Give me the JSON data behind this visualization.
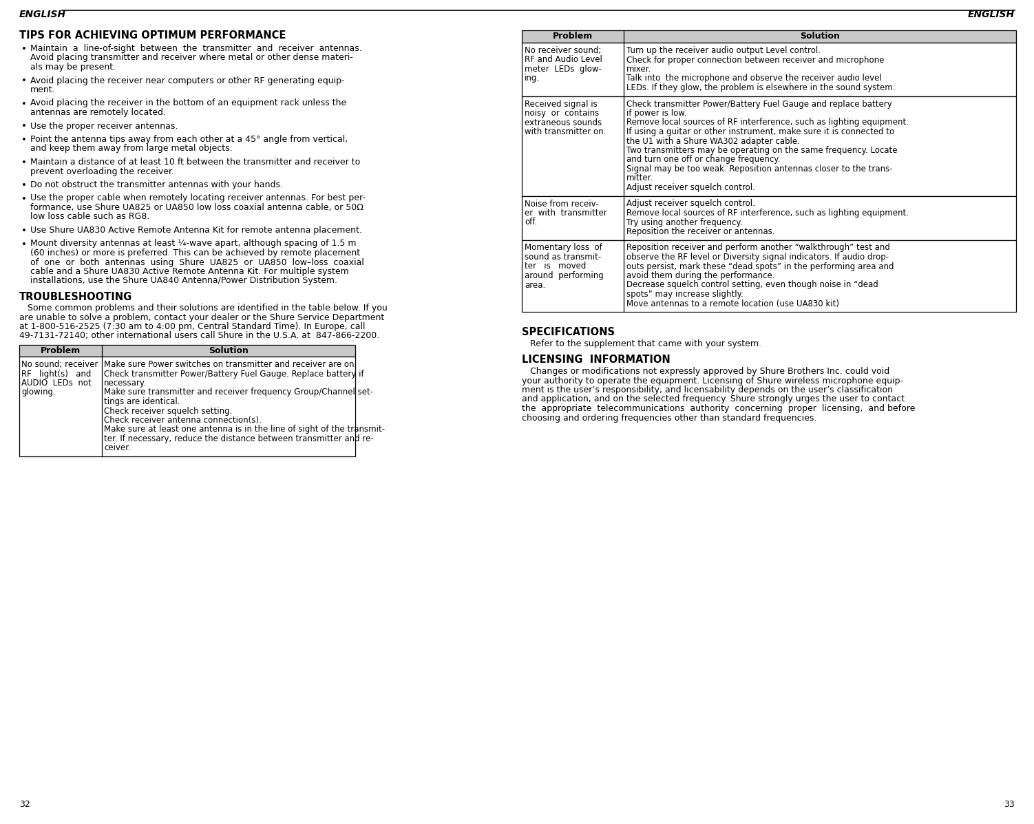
{
  "bg_color": "#ffffff",
  "text_color": "#000000",
  "page_numbers": [
    "32",
    "33"
  ],
  "left_heading": "TIPS FOR ACHIEVING OPTIMUM PERFORMANCE",
  "left_bullets": [
    "Maintain  a  line-of-sight  between  the  transmitter  and  receiver  antennas.\nAvoid placing transmitter and receiver where metal or other dense materi-\nals may be present.",
    "Avoid placing the receiver near computers or other RF generating equip-\nment.",
    "Avoid placing the receiver in the bottom of an equipment rack unless the\nantennas are remotely located.",
    "Use the proper receiver antennas.",
    "Point the antenna tips away from each other at a 45° angle from vertical,\nand keep them away from large metal objects.",
    "Maintain a distance of at least 10 ft between the transmitter and receiver to\nprevent overloading the receiver.",
    "Do not obstruct the transmitter antennas with your hands.",
    "Use the proper cable when remotely locating receiver antennas. For best per-\nformance, use Shure UA825 or UA850 low loss coaxial antenna cable, or 50Ω\nlow loss cable such as RG8.",
    "Use Shure UA830 Active Remote Antenna Kit for remote antenna placement.",
    "Mount diversity antennas at least ¼-wave apart, although spacing of 1.5 m\n(60 inches) or more is preferred. This can be achieved by remote placement\nof  one  or  both  antennas  using  Shure  UA825  or  UA850  low–loss  coaxial\ncable and a Shure UA830 Active Remote Antenna Kit. For multiple system\ninstallations, use the Shure UA840 Antenna/Power Distribution System."
  ],
  "troubleshooting_heading": "TROUBLESHOOTING",
  "troubleshooting_intro": "   Some common problems and their solutions are identified in the table below. If you\nare unable to solve a problem, contact your dealer or the Shure Service Department\nat 1-800-516-2525 (7:30 am to 4:00 pm, Central Standard Time). In Europe, call\n49-7131-72140; other international users call Shure in the U.S.A. at  847-866-2200.",
  "left_table_header": [
    "Problem",
    "Solution"
  ],
  "left_table_rows": [
    {
      "problem": "No sound; receiver\nRF   light(s)   and\nAUDIO  LEDs  not\nglowing.",
      "solution": "Make sure Power switches on transmitter and receiver are on.\nCheck transmitter Power/Battery Fuel Gauge. Replace battery if\nnecessary.\nMake sure transmitter and receiver frequency Group/Channel set-\ntings are identical.\nCheck receiver squelch setting.\nCheck receiver antenna connection(s).\nMake sure at least one antenna is in the line of sight of the transmit-\nter. If necessary, reduce the distance between transmitter and re-\nceiver."
    }
  ],
  "right_table_header": [
    "Problem",
    "Solution"
  ],
  "right_table_rows": [
    {
      "problem": "No receiver sound;\nRF and Audio Level\nmeter  LEDs  glow-\ning.",
      "solution": "Turn up the receiver audio output Level control.\nCheck for proper connection between receiver and microphone\nmixer.\nTalk into  the microphone and observe the receiver audio level\nLEDs. If they glow, the problem is elsewhere in the sound system."
    },
    {
      "problem": "Received signal is\nnoisy  or  contains\nextraneous sounds\nwith transmitter on.",
      "solution": "Check transmitter Power/Battery Fuel Gauge and replace battery\nif power is low.\nRemove local sources of RF interference, such as lighting equipment.\nIf using a guitar or other instrument, make sure it is connected to\nthe U1 with a Shure WA302 adapter cable.\nTwo transmitters may be operating on the same frequency. Locate\nand turn one off or change frequency.\nSignal may be too weak. Reposition antennas closer to the trans-\nmitter.\nAdjust receiver squelch control."
    },
    {
      "problem": "Noise from receiv-\ner  with  transmitter\noff.",
      "solution": "Adjust receiver squelch control.\nRemove local sources of RF interference, such as lighting equipment.\nTry using another frequency.\nReposition the receiver or antennas."
    },
    {
      "problem": "Momentary loss  of\nsound as transmit-\nter   is   moved\naround  performing\narea.",
      "solution": "Reposition receiver and perform another “walkthrough” test and\nobserve the RF level or Diversity signal indicators. If audio drop-\nouts persist, mark these “dead spots” in the performing area and\navoid them during the performance.\nDecrease squelch control setting, even though noise in “dead\nspots” may increase slightly.\nMove antennas to a remote location (use UA830 kit)"
    }
  ],
  "specs_heading": "SPECIFICATIONS",
  "specs_text": "   Refer to the supplement that came with your system.",
  "licensing_heading": "LICENSING  INFORMATION",
  "licensing_text": "   Changes or modifications not expressly approved by Shure Brothers Inc. could void\nyour authority to operate the equipment. Licensing of Shure wireless microphone equip-\nment is the user’s responsibility, and licensability depends on the user’s classification\nand application, and on the selected frequency. Shure strongly urges the user to contact\nthe  appropriate  telecommunications  authority  concerning  proper  licensing,  and before\nchoosing and ordering frequencies other than standard frequencies."
}
